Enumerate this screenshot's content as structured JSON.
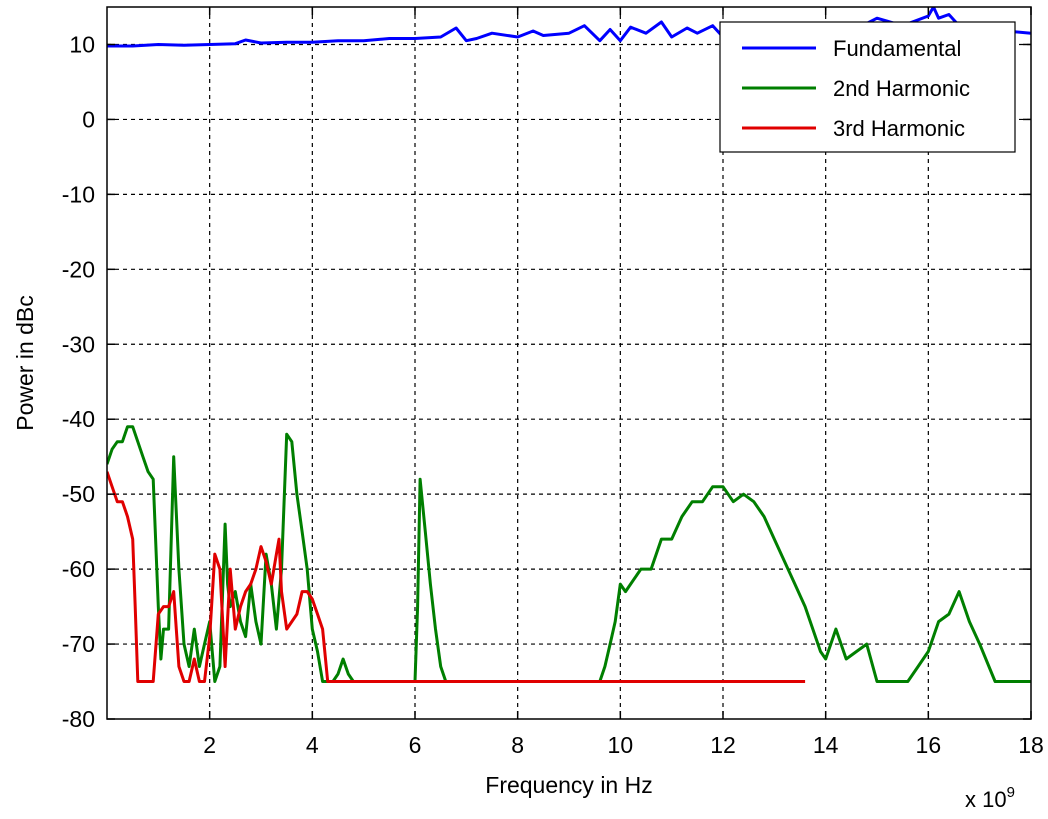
{
  "chart_data": {
    "type": "line",
    "title": "",
    "xlabel": "Frequency in Hz",
    "ylabel": "Power in dBc",
    "x_exponent_label": "x 10",
    "x_exponent_power": "9",
    "xlim": [
      0,
      18
    ],
    "ylim": [
      -80,
      15
    ],
    "x_ticks": [
      2,
      4,
      6,
      8,
      10,
      12,
      14,
      16,
      18
    ],
    "y_ticks": [
      10,
      0,
      -10,
      -20,
      -30,
      -40,
      -50,
      -60,
      -70,
      -80
    ],
    "grid": true,
    "legend_position": "top-right",
    "series": [
      {
        "name": "Fundamental",
        "color": "#0000ff",
        "x": [
          0.0,
          0.5,
          1.0,
          1.5,
          2.0,
          2.5,
          2.7,
          3.0,
          3.5,
          4.0,
          4.5,
          5.0,
          5.5,
          6.0,
          6.5,
          6.8,
          7.0,
          7.2,
          7.5,
          8.0,
          8.3,
          8.5,
          9.0,
          9.3,
          9.6,
          9.8,
          10.0,
          10.2,
          10.5,
          10.8,
          11.0,
          11.3,
          11.5,
          11.8,
          12.0,
          12.5,
          13.0,
          13.5,
          14.0,
          14.5,
          14.8,
          15.0,
          15.5,
          16.0,
          16.1,
          16.2,
          16.4,
          16.6,
          17.0,
          17.5,
          18.0
        ],
        "y": [
          9.8,
          9.8,
          10.0,
          9.9,
          10.0,
          10.1,
          10.6,
          10.2,
          10.3,
          10.3,
          10.5,
          10.5,
          10.8,
          10.8,
          11.0,
          12.2,
          10.5,
          10.8,
          11.5,
          11.0,
          11.8,
          11.2,
          11.5,
          12.5,
          10.5,
          12.0,
          10.5,
          12.3,
          11.5,
          13.0,
          11.0,
          12.2,
          11.5,
          12.5,
          11.0,
          12.0,
          11.5,
          12.5,
          11.8,
          12.0,
          12.8,
          13.5,
          12.5,
          13.8,
          15.0,
          13.5,
          14.0,
          12.5,
          12.5,
          11.8,
          11.5
        ]
      },
      {
        "name": "2nd Harmonic",
        "color": "#007f00",
        "x": [
          0.0,
          0.1,
          0.2,
          0.3,
          0.4,
          0.5,
          0.6,
          0.7,
          0.8,
          0.9,
          1.0,
          1.05,
          1.1,
          1.2,
          1.3,
          1.4,
          1.5,
          1.6,
          1.7,
          1.8,
          1.9,
          2.0,
          2.1,
          2.2,
          2.3,
          2.35,
          2.4,
          2.5,
          2.6,
          2.7,
          2.8,
          2.9,
          3.0,
          3.1,
          3.2,
          3.3,
          3.4,
          3.5,
          3.6,
          3.7,
          3.8,
          3.9,
          4.0,
          4.1,
          4.2,
          4.3,
          4.4,
          4.5,
          4.6,
          4.7,
          4.8,
          5.0,
          5.5,
          6.0,
          6.05,
          6.1,
          6.2,
          6.3,
          6.4,
          6.5,
          6.6,
          7.0,
          8.0,
          9.0,
          9.6,
          9.7,
          9.8,
          9.9,
          10.0,
          10.1,
          10.2,
          10.4,
          10.6,
          10.8,
          11.0,
          11.2,
          11.4,
          11.6,
          11.8,
          12.0,
          12.2,
          12.4,
          12.6,
          12.8,
          13.0,
          13.2,
          13.4,
          13.6,
          13.8,
          13.9,
          14.0,
          14.2,
          14.4,
          14.6,
          14.8,
          15.0,
          15.3,
          15.6,
          15.8,
          16.0,
          16.2,
          16.4,
          16.6,
          16.8,
          17.0,
          17.3,
          17.6,
          18.0
        ],
        "y": [
          -46,
          -44,
          -43,
          -43,
          -41,
          -41,
          -43,
          -45,
          -47,
          -48,
          -65,
          -72,
          -68,
          -68,
          -45,
          -60,
          -70,
          -73,
          -68,
          -73,
          -70,
          -67,
          -75,
          -73,
          -54,
          -62,
          -65,
          -63,
          -67,
          -69,
          -62,
          -67,
          -70,
          -58,
          -62,
          -68,
          -60,
          -42,
          -43,
          -50,
          -55,
          -60,
          -68,
          -71,
          -75,
          -75,
          -75,
          -74,
          -72,
          -74,
          -75,
          -75,
          -75,
          -75,
          -65,
          -48,
          -55,
          -62,
          -68,
          -73,
          -75,
          -75,
          -75,
          -75,
          -75,
          -73,
          -70,
          -67,
          -62,
          -63,
          -62,
          -60,
          -60,
          -56,
          -56,
          -53,
          -51,
          -51,
          -49,
          -49,
          -51,
          -50,
          -51,
          -53,
          -56,
          -59,
          -62,
          -65,
          -69,
          -71,
          -72,
          -68,
          -72,
          -71,
          -70,
          -75,
          -75,
          -75,
          -73,
          -71,
          -67,
          -66,
          -63,
          -67,
          -70,
          -75,
          -75,
          -75
        ]
      },
      {
        "name": "3rd Harmonic",
        "color": "#e00000",
        "x": [
          0.0,
          0.1,
          0.2,
          0.3,
          0.4,
          0.5,
          0.55,
          0.6,
          0.7,
          0.8,
          0.9,
          1.0,
          1.1,
          1.2,
          1.3,
          1.35,
          1.4,
          1.5,
          1.6,
          1.7,
          1.8,
          1.9,
          2.0,
          2.1,
          2.2,
          2.3,
          2.4,
          2.5,
          2.6,
          2.7,
          2.8,
          2.9,
          3.0,
          3.1,
          3.2,
          3.3,
          3.35,
          3.4,
          3.5,
          3.6,
          3.7,
          3.8,
          3.9,
          4.0,
          4.1,
          4.2,
          4.3,
          4.4,
          4.5,
          5.0,
          6.0,
          8.0,
          10.0,
          12.0,
          13.6
        ],
        "y": [
          -47,
          -49,
          -51,
          -51,
          -53,
          -56,
          -65,
          -75,
          -75,
          -75,
          -75,
          -66,
          -65,
          -65,
          -63,
          -68,
          -73,
          -75,
          -75,
          -72,
          -75,
          -75,
          -69,
          -58,
          -60,
          -73,
          -60,
          -68,
          -65,
          -63,
          -62,
          -60,
          -57,
          -59,
          -62,
          -58,
          -56,
          -63,
          -68,
          -67,
          -66,
          -63,
          -63,
          -64,
          -66,
          -68,
          -75,
          -75,
          -75,
          -75,
          -75,
          -75,
          -75,
          -75,
          -75
        ]
      }
    ]
  }
}
